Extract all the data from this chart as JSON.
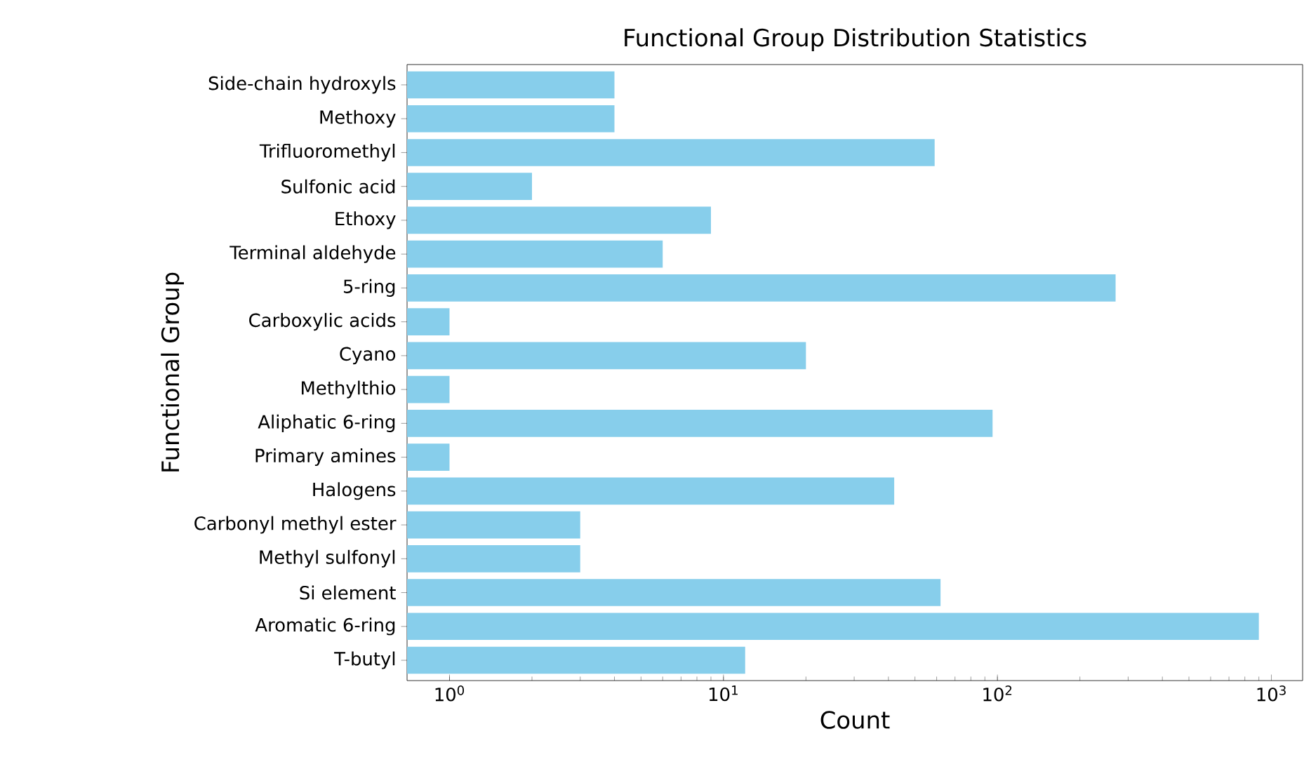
{
  "chart_data": {
    "type": "bar",
    "orientation": "horizontal",
    "title": "Functional Group Distribution Statistics",
    "xlabel": "Count",
    "ylabel": "Functional Group",
    "categories": [
      "Side-chain hydroxyls",
      "Methoxy",
      "Trifluoromethyl",
      "Sulfonic acid",
      "Ethoxy",
      "Terminal aldehyde",
      "5-ring",
      "Carboxylic acids",
      "Cyano",
      "Methylthio",
      "Aliphatic 6-ring",
      "Primary amines",
      "Halogens",
      "Carbonyl methyl ester",
      "Methyl sulfonyl",
      "Si element",
      "Aromatic 6-ring",
      "T-butyl"
    ],
    "values": [
      4,
      4,
      59,
      2,
      9,
      6,
      270,
      1,
      20,
      1,
      96,
      1,
      42,
      3,
      3,
      62,
      900,
      12
    ],
    "color": "#87ceeb",
    "log": "x",
    "xlim": [
      0.7,
      1300
    ],
    "xticks": [
      {
        "value": 1,
        "label": "10$^{0}$"
      },
      {
        "value": 10,
        "label": "10$^{1}$"
      },
      {
        "value": 100,
        "label": "10$^{2}$"
      },
      {
        "value": 1000,
        "label": "10$^{3}$"
      }
    ],
    "grid": false
  }
}
